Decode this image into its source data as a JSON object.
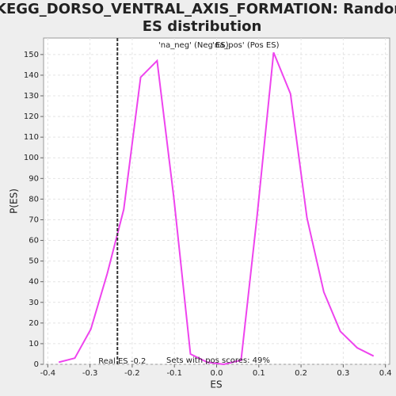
{
  "chart_data": {
    "type": "line",
    "title": [
      "KEGG_DORSO_VENTRAL_AXIS_FORMATION: Random",
      "ES distribution"
    ],
    "xlabel": "ES",
    "ylabel": "P(ES)",
    "x": [
      -0.374,
      -0.336,
      -0.298,
      -0.259,
      -0.22,
      -0.18,
      -0.141,
      -0.101,
      -0.062,
      -0.022,
      0.017,
      0.058,
      0.096,
      0.135,
      0.175,
      0.214,
      0.254,
      0.293,
      0.333,
      0.372
    ],
    "series": [
      {
        "color": "#ee44ee",
        "values": [
          1,
          3,
          17,
          44,
          75,
          139,
          147,
          80,
          5,
          1,
          0,
          2,
          72,
          151,
          131,
          71,
          35,
          16,
          8,
          4
        ]
      }
    ],
    "legend": [
      {
        "name": "'na_neg' (Neg ES)",
        "color": "#4444cc"
      },
      {
        "name": "'na_pos' (Pos ES)",
        "color": "#cc4444"
      }
    ],
    "real_es": {
      "value": -0.235,
      "label": "Real ES -0.2"
    },
    "annotation": "Sets with pos scores: 49%",
    "xlim": [
      -0.41,
      0.41
    ],
    "ylim": [
      0,
      158
    ],
    "xticks": [
      -0.4,
      -0.3,
      -0.2,
      -0.1,
      {
        "value": 0,
        "label": "0.0"
      },
      0.1,
      0.2,
      0.3,
      0.4
    ],
    "yticks": [
      0,
      10,
      20,
      30,
      40,
      50,
      60,
      70,
      80,
      90,
      100,
      110,
      120,
      130,
      140,
      150
    ],
    "grid": true
  }
}
